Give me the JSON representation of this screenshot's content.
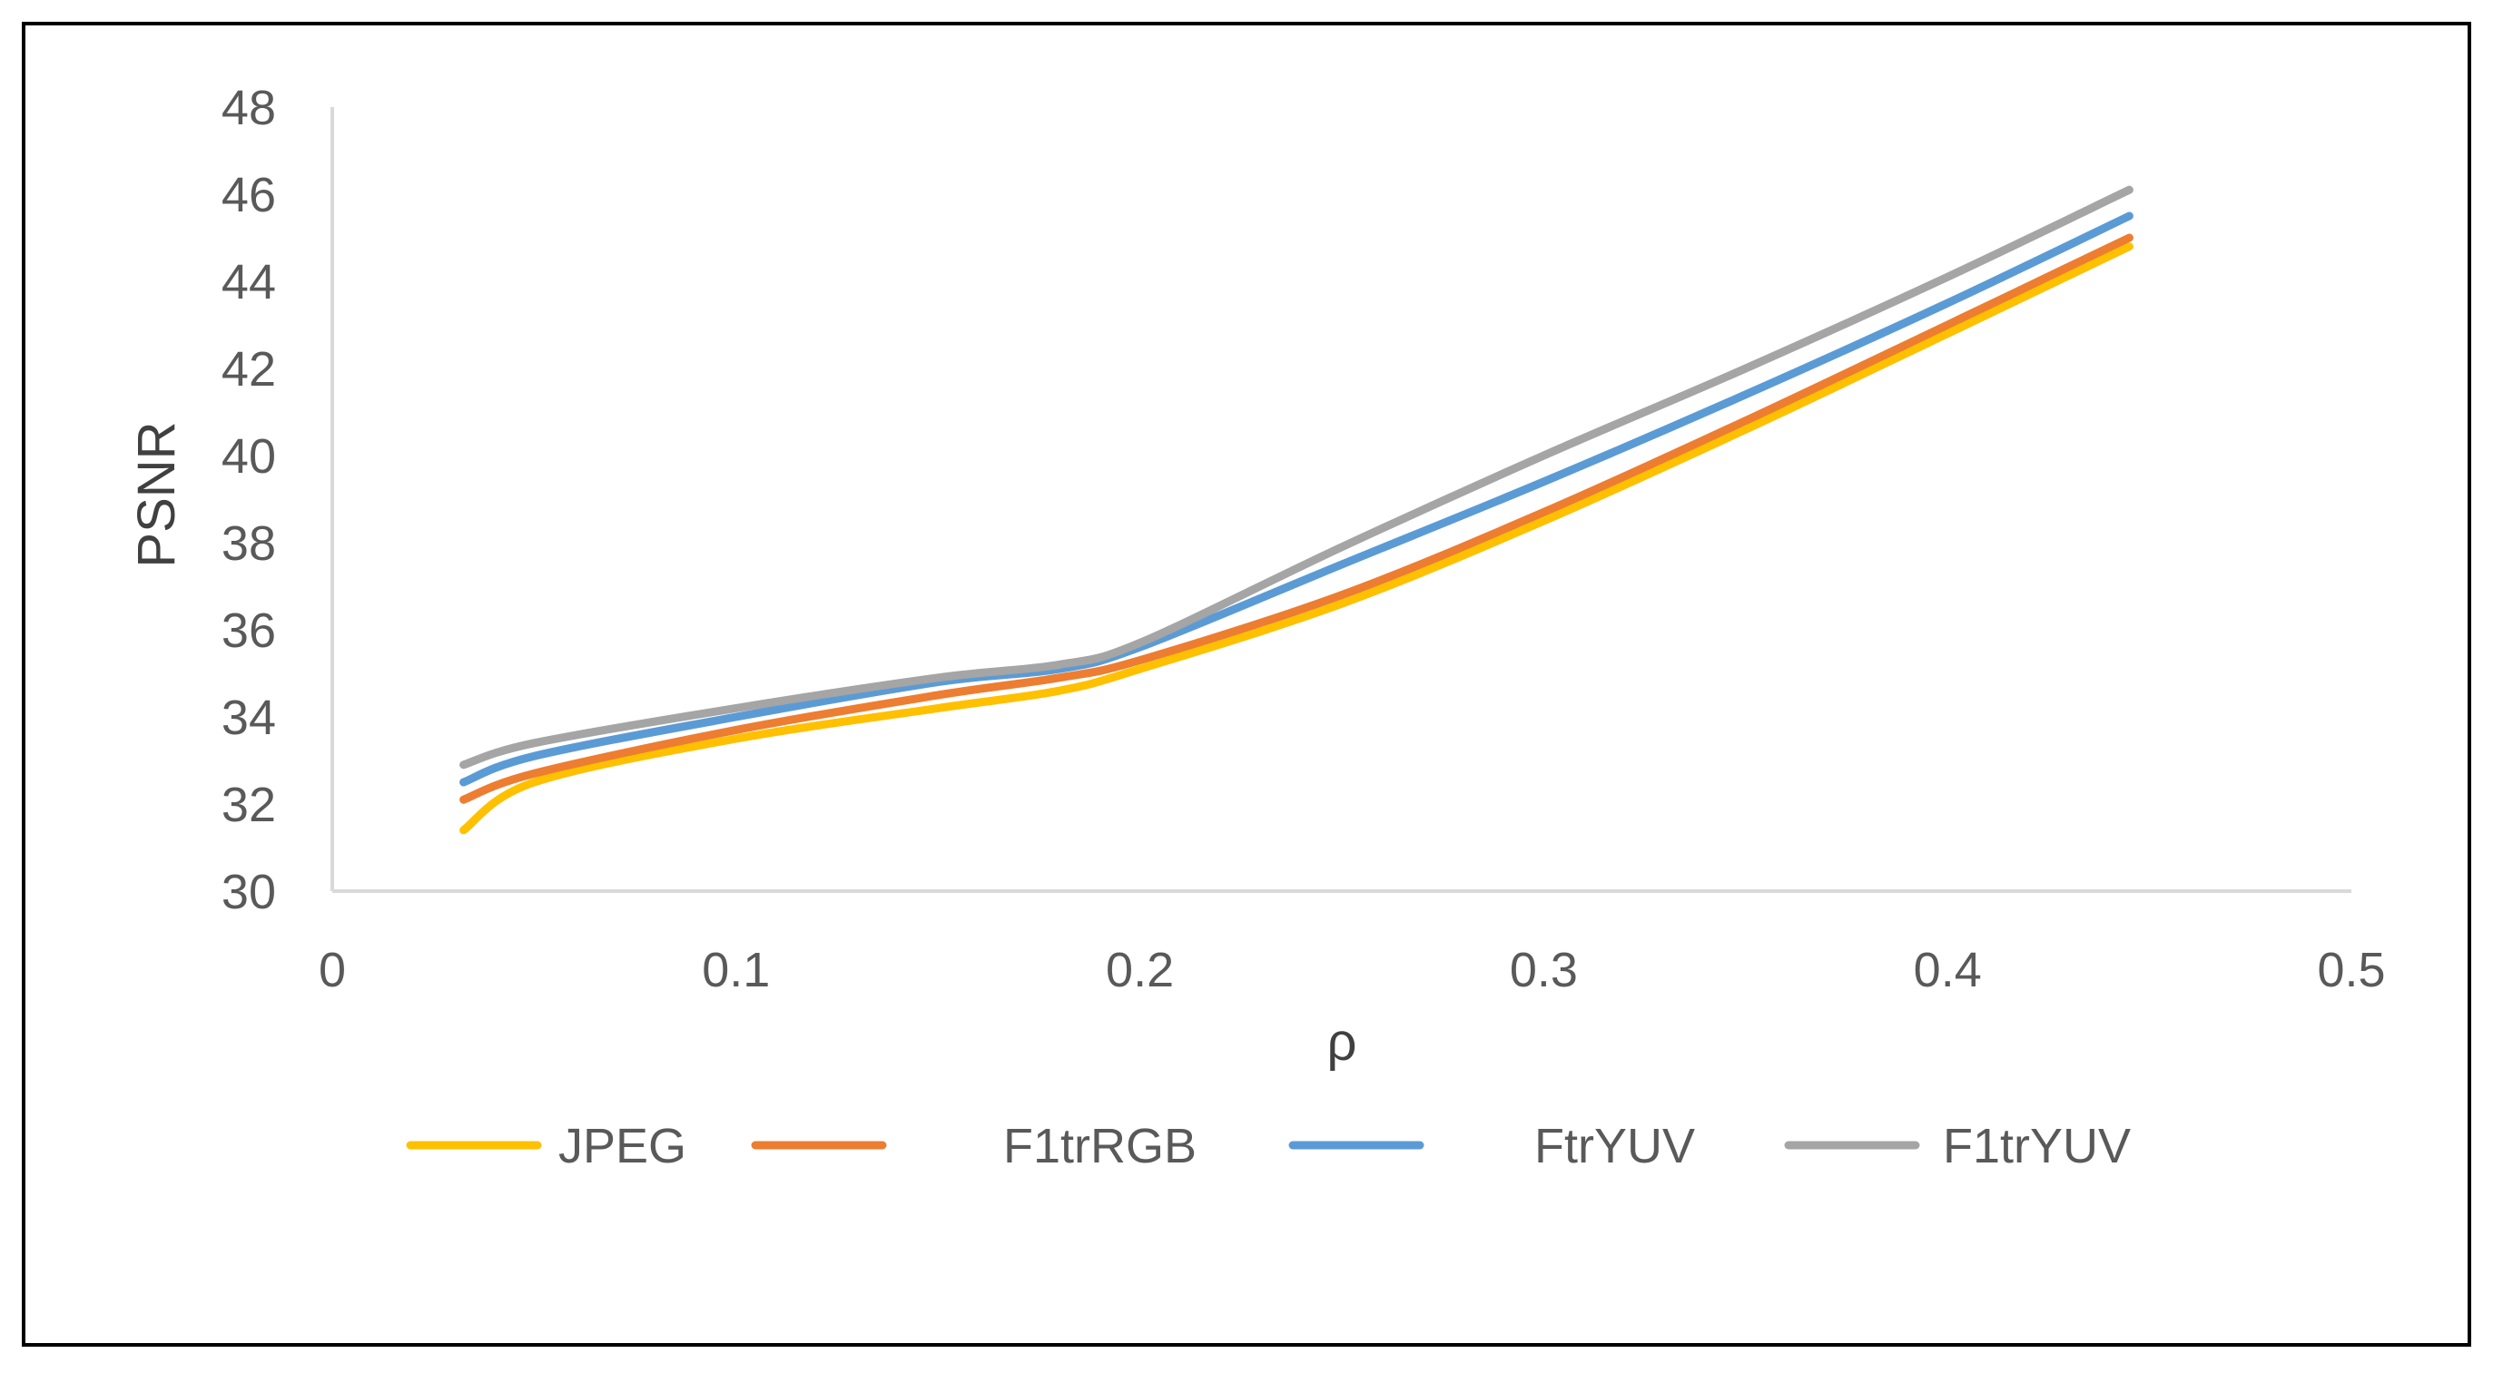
{
  "chart_data": {
    "type": "line",
    "title": "",
    "xlabel": "ρ",
    "ylabel": "PSNR",
    "xlim": [
      0,
      0.5
    ],
    "ylim": [
      30,
      48
    ],
    "x_ticks": [
      "0",
      "0.1",
      "0.2",
      "0.3",
      "0.4",
      "0.5"
    ],
    "y_ticks": [
      "30",
      "32",
      "34",
      "36",
      "38",
      "40",
      "42",
      "44",
      "46",
      "48"
    ],
    "grid": false,
    "legend_position": "bottom",
    "x": [
      0.0325,
      0.05,
      0.1,
      0.15,
      0.18,
      0.2,
      0.25,
      0.3,
      0.35,
      0.4,
      0.445
    ],
    "series": [
      {
        "name": "JPEG",
        "color": "#FFC000",
        "values": [
          31.4,
          32.5,
          33.5,
          34.2,
          34.6,
          35.1,
          36.6,
          38.5,
          40.6,
          42.8,
          44.8
        ]
      },
      {
        "name": "F1trRGB",
        "color": "#ED7D31",
        "values": [
          32.1,
          32.7,
          33.7,
          34.5,
          34.9,
          35.3,
          36.8,
          38.7,
          40.8,
          43.0,
          45.0
        ]
      },
      {
        "name": "FtrYUV",
        "color": "#5B9BD5",
        "values": [
          32.5,
          33.1,
          34.0,
          34.8,
          35.1,
          35.6,
          37.5,
          39.4,
          41.4,
          43.5,
          45.5
        ]
      },
      {
        "name": "F1trYUV",
        "color": "#A5A5A5",
        "values": [
          32.9,
          33.4,
          34.2,
          34.9,
          35.2,
          35.7,
          37.9,
          40.0,
          42.0,
          44.1,
          46.1
        ]
      }
    ]
  },
  "colors": {
    "axis": "#D9D9D9",
    "frame": "#000000",
    "text": "#595959"
  }
}
